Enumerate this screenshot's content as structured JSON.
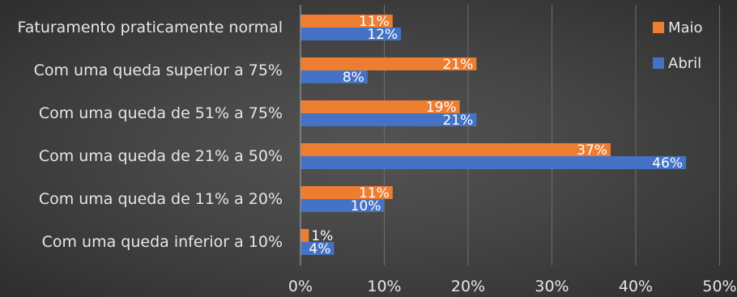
{
  "chart_data": {
    "type": "bar",
    "orientation": "horizontal",
    "categories": [
      "Faturamento praticamente normal",
      "Com uma queda superior a 75%",
      "Com uma queda de 51% a 75%",
      "Com uma queda de 21% a 50%",
      "Com uma queda de 11% a 20%",
      "Com uma queda inferior a 10%"
    ],
    "series": [
      {
        "name": "Maio",
        "color": "#ED7D31",
        "values": [
          11,
          21,
          19,
          37,
          11,
          1
        ],
        "labels": [
          "11%",
          "21%",
          "19%",
          "37%",
          "11%",
          "1%"
        ]
      },
      {
        "name": "Abril",
        "color": "#4472C4",
        "values": [
          12,
          8,
          21,
          46,
          10,
          4
        ],
        "labels": [
          "12%",
          "8%",
          "21%",
          "46%",
          "10%",
          "4%"
        ]
      }
    ],
    "xlim": [
      0,
      50
    ],
    "xticks": [
      "0%",
      "10%",
      "20%",
      "30%",
      "40%",
      "50%"
    ],
    "grid": true,
    "legend_position": "top-right",
    "title": "",
    "xlabel": "",
    "ylabel": ""
  }
}
